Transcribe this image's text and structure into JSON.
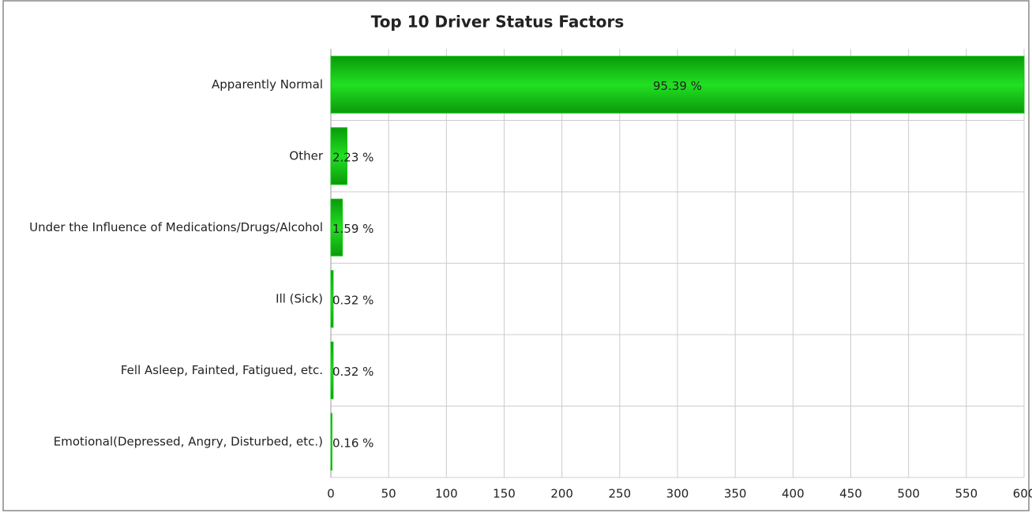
{
  "chart_data": {
    "type": "hbar",
    "title": "Top 10 Driver Status Factors",
    "categories": [
      "Apparently Normal",
      "Other",
      "Under the Influence of Medications/Drugs/Alcohol",
      "Ill (Sick)",
      "Fell Asleep, Fainted, Fatigued, etc.",
      "Emotional(Depressed, Angry, Disturbed, etc.)"
    ],
    "values": [
      600,
      14,
      10,
      2,
      2,
      1
    ],
    "value_labels": [
      "95.39 %",
      "2.23 %",
      "1.59 %",
      "0.32 %",
      "0.32 %",
      "0.16 %"
    ],
    "color": "#11c311",
    "xlim": [
      0,
      600
    ],
    "xticks": [
      0,
      50,
      100,
      150,
      200,
      250,
      300,
      350,
      400,
      450,
      500,
      550,
      600
    ],
    "grid": true
  }
}
